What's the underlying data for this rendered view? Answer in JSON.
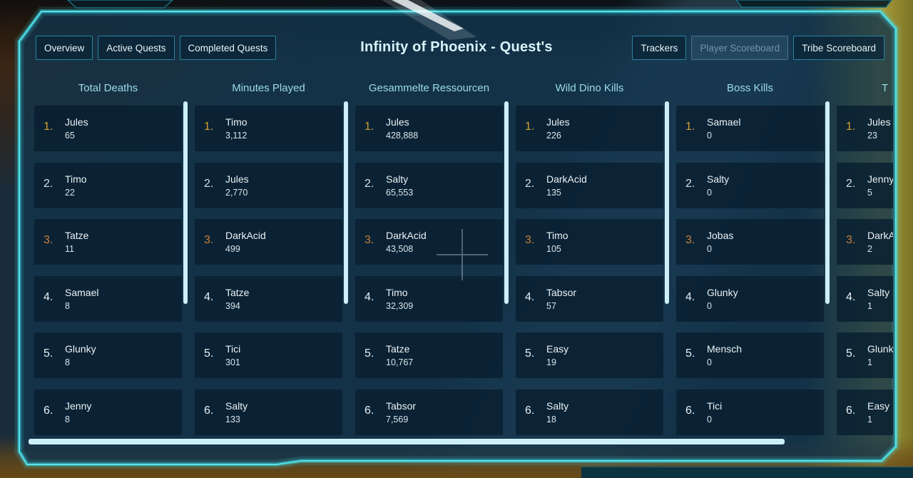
{
  "header": {
    "title": "Infinity of Phoenix - Quest's",
    "left_tabs": [
      "Overview",
      "Active Quests",
      "Completed Quests"
    ],
    "right_tabs": [
      {
        "label": "Trackers",
        "dimmed": false
      },
      {
        "label": "Player Scoreboard",
        "dimmed": true
      },
      {
        "label": "Tribe Scoreboard",
        "dimmed": false
      }
    ]
  },
  "scoreboard": {
    "rank_colors": {
      "gold": "#d2a130",
      "silver": "#d8dfe4",
      "bronze": "#c9803a",
      "plain": "#e9eff3"
    },
    "columns": [
      {
        "title": "Total Deaths",
        "entries": [
          {
            "rank": "1.",
            "name": "Jules",
            "value": "65"
          },
          {
            "rank": "2.",
            "name": "Timo",
            "value": "22"
          },
          {
            "rank": "3.",
            "name": "Tatze",
            "value": "11"
          },
          {
            "rank": "4.",
            "name": "Samael",
            "value": "8"
          },
          {
            "rank": "5.",
            "name": "Glunky",
            "value": "8"
          },
          {
            "rank": "6.",
            "name": "Jenny",
            "value": "8"
          }
        ]
      },
      {
        "title": "Minutes Played",
        "entries": [
          {
            "rank": "1.",
            "name": "Timo",
            "value": "3,112"
          },
          {
            "rank": "2.",
            "name": "Jules",
            "value": "2,770"
          },
          {
            "rank": "3.",
            "name": "DarkAcid",
            "value": "499"
          },
          {
            "rank": "4.",
            "name": "Tatze",
            "value": "394"
          },
          {
            "rank": "5.",
            "name": "Tici",
            "value": "301"
          },
          {
            "rank": "6.",
            "name": "Salty",
            "value": "133"
          }
        ]
      },
      {
        "title": "Gesammelte Ressourcen",
        "entries": [
          {
            "rank": "1.",
            "name": "Jules",
            "value": "428,888"
          },
          {
            "rank": "2.",
            "name": "Salty",
            "value": "65,553"
          },
          {
            "rank": "3.",
            "name": "DarkAcid",
            "value": "43,508"
          },
          {
            "rank": "4.",
            "name": "Timo",
            "value": "32,309"
          },
          {
            "rank": "5.",
            "name": "Tatze",
            "value": "10,767"
          },
          {
            "rank": "6.",
            "name": "Tabsor",
            "value": "7,569"
          }
        ]
      },
      {
        "title": "Wild Dino Kills",
        "entries": [
          {
            "rank": "1.",
            "name": "Jules",
            "value": "226"
          },
          {
            "rank": "2.",
            "name": "DarkAcid",
            "value": "135"
          },
          {
            "rank": "3.",
            "name": "Timo",
            "value": "105"
          },
          {
            "rank": "4.",
            "name": "Tabsor",
            "value": "57"
          },
          {
            "rank": "5.",
            "name": "Easy",
            "value": "19"
          },
          {
            "rank": "6.",
            "name": "Salty",
            "value": "18"
          }
        ]
      },
      {
        "title": "Boss Kills",
        "entries": [
          {
            "rank": "1.",
            "name": "Samael",
            "value": "0"
          },
          {
            "rank": "2.",
            "name": "Salty",
            "value": "0"
          },
          {
            "rank": "3.",
            "name": "Jobas",
            "value": "0"
          },
          {
            "rank": "4.",
            "name": "Glunky",
            "value": "0"
          },
          {
            "rank": "5.",
            "name": "Mensch",
            "value": "0"
          },
          {
            "rank": "6.",
            "name": "Tici",
            "value": "0"
          }
        ]
      },
      {
        "title": "T",
        "truncated": true,
        "entries": [
          {
            "rank": "1.",
            "name": "Jules",
            "value": "23"
          },
          {
            "rank": "2.",
            "name": "Jenny",
            "value": "5"
          },
          {
            "rank": "3.",
            "name": "DarkAcid",
            "value": "2"
          },
          {
            "rank": "4.",
            "name": "Salty",
            "value": "1"
          },
          {
            "rank": "5.",
            "name": "Glunky",
            "value": "1"
          },
          {
            "rank": "6.",
            "name": "Easy",
            "value": "1"
          }
        ]
      }
    ]
  },
  "colors": {
    "accent_cyan": "#53e6ef",
    "scrollbar": "#cdeffa",
    "column_header_text": "#9bdbe9",
    "title_text": "#d9f2f8"
  }
}
